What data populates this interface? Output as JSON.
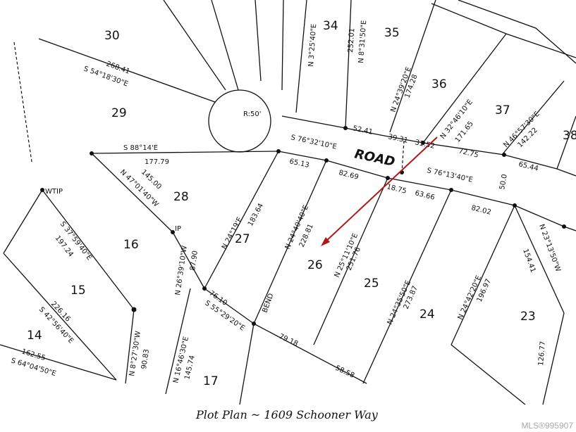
{
  "caption": "Plot Plan ~  1609 Schooner Way",
  "watermark": "MLS®995907",
  "road_label": "ROAD",
  "highlight_color": "#b01818",
  "lots": [
    "30",
    "34",
    "35",
    "36",
    "37",
    "38",
    "29",
    "28",
    "27",
    "26",
    "25",
    "24",
    "23",
    "16",
    "15",
    "14",
    "17"
  ],
  "labels": [
    "S 54°18'30\"E",
    "268.41",
    "S 88°14'E",
    "177.79",
    "N 47°01'40\"W",
    "145.00",
    "N 24°19'E",
    "183.64",
    "N 24°40'40\"E",
    "228.81",
    "N 25°11'10\"E",
    "251.76",
    "N 24°35'50\"E",
    "273.87",
    "N 24°42'20\"E",
    "196.97",
    "S 76°32'10\"E",
    "S 76°13'40\"E",
    "50.0",
    "65.13",
    "82.69",
    "18.75",
    "63.66",
    "82.02",
    "52.41",
    "39.31",
    "31.52",
    "72.75",
    "65.44",
    "S 37°59'40\"E",
    "197.24",
    "N 26°39'10\"W",
    "87.90",
    "S 55°29'20\"E",
    "76.10",
    "N 16°46'30\"E",
    "145.74",
    "N 32°46'10\"E",
    "171.65",
    "N 24°39'20\"E",
    "174.28",
    "N 8°31'50\"E",
    "252.01",
    "N 3°25'40\"E",
    "N 46°57'30\"E",
    "142.22",
    "N 23°13'50\"W",
    "154.41",
    "126.77",
    "WTIP",
    "IP",
    "R:50'",
    "BEND",
    "79.18",
    "58.58",
    "S 64°04'50\"E",
    "162.55",
    "S 42°56'40\"E",
    "226.16",
    "N 8°27'30\"W",
    "90.83"
  ]
}
